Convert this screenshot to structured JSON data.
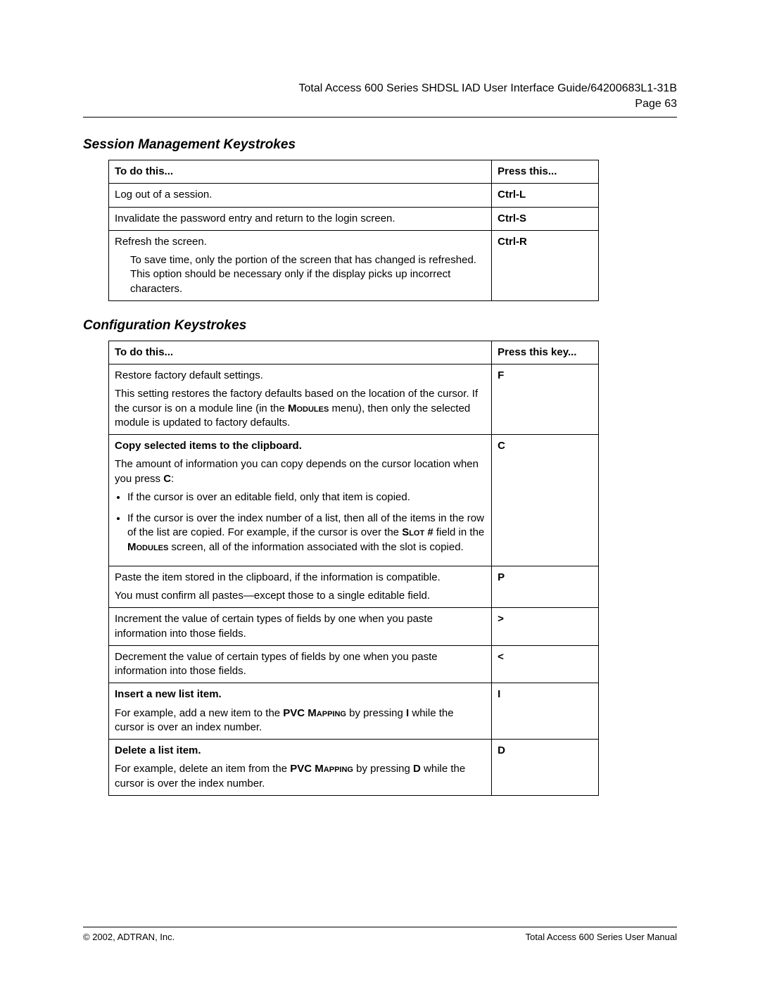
{
  "header": {
    "doc_title": "Total Access 600 Series SHDSL IAD User Interface Guide/64200683L1-31B",
    "page_label": "Page 63"
  },
  "section1": {
    "title": "Session Management Keystrokes",
    "columns": {
      "action": "To do this...",
      "key": "Press this..."
    },
    "rows": [
      {
        "action": "Log out of a session.",
        "key": "Ctrl-L"
      },
      {
        "action": "Invalidate the password entry and return to the login screen.",
        "key": "Ctrl-S"
      },
      {
        "action_title": "Refresh the screen.",
        "action_detail": "To save time, only the portion of the screen that has changed is refreshed. This option should be necessary only if the display picks up incorrect characters.",
        "key": "Ctrl-R"
      }
    ]
  },
  "section2": {
    "title": "Configuration Keystrokes",
    "columns": {
      "action": "To do this...",
      "key": "Press this key..."
    },
    "rows": [
      {
        "title": "Restore factory default settings.",
        "detail_pre": "This setting restores the factory defaults based on the location of the cursor. If the cursor is on a module line (in the ",
        "detail_sc1": "Modules",
        "detail_post": " menu), then only the selected module is updated to factory defaults.",
        "key": "F"
      },
      {
        "title": "Copy selected items to the clipboard.",
        "title_bold": true,
        "detail_pre": "The amount of information you can copy depends on the cursor location when you press ",
        "detail_bold1": "C",
        "detail_post": ":",
        "bullets": [
          {
            "pre": "If the cursor is over an editable field, only that item is copied."
          },
          {
            "pre": "If the cursor is over the index number of a list, then all of the items in the row of the list are copied.  For example, if the cursor is over the ",
            "sc1": "Slot #",
            "mid": " field in the ",
            "sc2": "Modules",
            "post": " screen, all of the information associated with the slot is copied."
          }
        ],
        "key": "C"
      },
      {
        "title": "Paste the item stored in the clipboard, if the information is compatible.",
        "detail_plain": "You must confirm all pastes—except those to a single editable field.",
        "key": "P"
      },
      {
        "title": "Increment the value of certain types of fields by one when you paste information into those fields.",
        "key": ">"
      },
      {
        "title": "Decrement the value of certain types of fields by one when you paste information into those fields.",
        "key": "<"
      },
      {
        "title": "Insert a new list item.",
        "title_bold": true,
        "detail_pre": "For example, add a new item to the ",
        "detail_sc1": "PVC Mapping",
        "detail_mid": " by pressing ",
        "detail_bold1": "I",
        "detail_post": " while the cursor is over an index number.",
        "key": "I"
      },
      {
        "title": "Delete a list item.",
        "title_bold": true,
        "detail_pre": "For example, delete an item from the ",
        "detail_sc1": "PVC Mapping",
        "detail_mid": " by pressing ",
        "detail_bold1": "D",
        "detail_post": " while the cursor is over the index number.",
        "key": "D"
      }
    ]
  },
  "footer": {
    "left": "© 2002, ADTRAN, Inc.",
    "right": "Total Access 600 Series User Manual"
  }
}
